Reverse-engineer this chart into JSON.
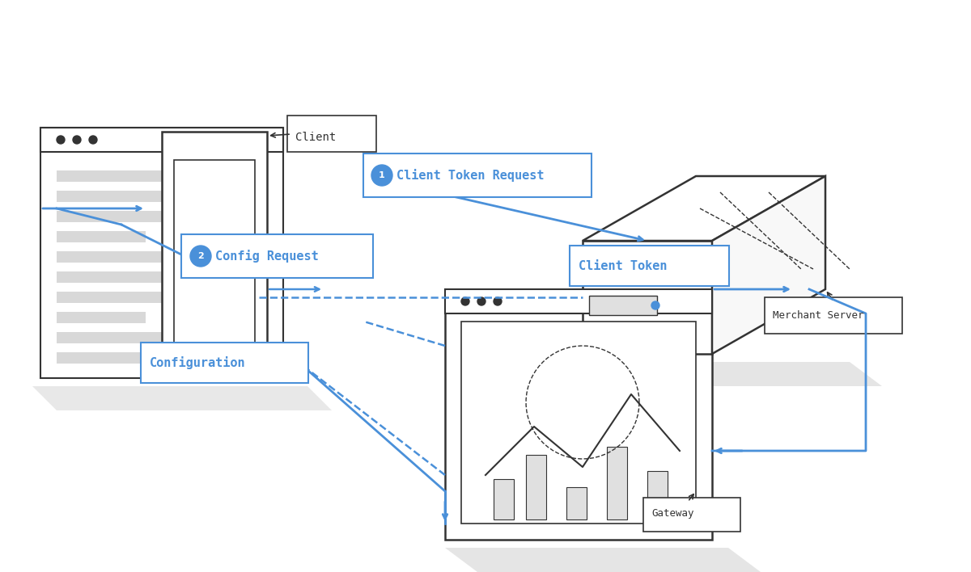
{
  "bg_color": "#ffffff",
  "dark_color": "#333333",
  "blue_color": "#4A90D9",
  "light_blue_fill": "#e8f4fd",
  "gray_color": "#cccccc",
  "light_gray": "#f0f0f0",
  "shadow_color": "#e0e0e0",
  "label_client_token_request": "Client Token Request",
  "label_client_token": "Client Token",
  "label_config_request": "Config Request",
  "label_configuration": "Configuration",
  "label_client": "Client",
  "label_merchant": "Merchant Server",
  "label_gateway": "Gateway"
}
